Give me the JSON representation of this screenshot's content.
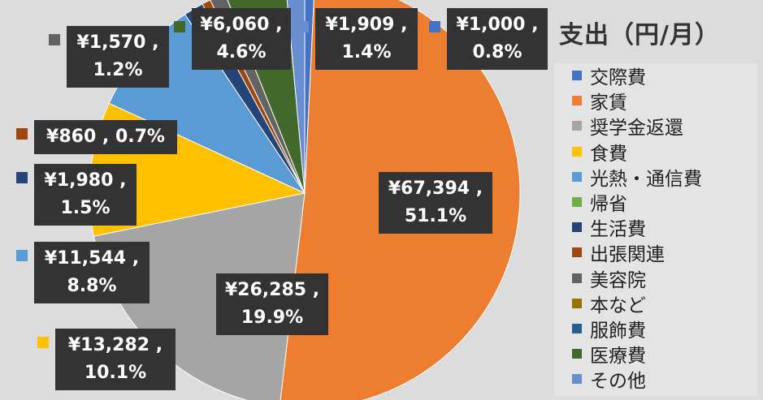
{
  "chart_data": {
    "type": "pie",
    "title": "支出（円/月）",
    "legend_position": "right",
    "slices": [
      {
        "name": "交際費",
        "value": 1000,
        "percent": 0.8,
        "color": "#4472c4",
        "label": [
          "¥1,000 ,",
          "0.8%"
        ]
      },
      {
        "name": "家賃",
        "value": 67394,
        "percent": 51.1,
        "color": "#ed7d31",
        "label": [
          "¥67,394 ,",
          "51.1%"
        ]
      },
      {
        "name": "奨学金返還",
        "value": 26285,
        "percent": 19.9,
        "color": "#a5a5a5",
        "label": [
          "¥26,285 ,",
          "19.9%"
        ]
      },
      {
        "name": "食費",
        "value": 13282,
        "percent": 10.1,
        "color": "#ffc000",
        "label": [
          "¥13,282 ,",
          "10.1%"
        ]
      },
      {
        "name": "光熱・通信費",
        "value": 11544,
        "percent": 8.8,
        "color": "#5b9bd5",
        "label": [
          "¥11,544 ,",
          "8.8%"
        ]
      },
      {
        "name": "帰省",
        "value": 0,
        "percent": 0,
        "color": "#70ad47",
        "label": null
      },
      {
        "name": "生活費",
        "value": 1980,
        "percent": 1.5,
        "color": "#264478",
        "label": [
          "¥1,980 ,",
          "1.5%"
        ]
      },
      {
        "name": "出張関連",
        "value": 860,
        "percent": 0.7,
        "color": "#9e480e",
        "label": [
          "¥860 , 0.7%"
        ]
      },
      {
        "name": "美容院",
        "value": 1570,
        "percent": 1.2,
        "color": "#636363",
        "label": [
          "¥1,570 ,",
          "1.2%"
        ]
      },
      {
        "name": "本など",
        "value": 0,
        "percent": 0,
        "color": "#997300",
        "label": null
      },
      {
        "name": "服飾費",
        "value": 0,
        "percent": 0,
        "color": "#255e91",
        "label": null
      },
      {
        "name": "医療費",
        "value": 6060,
        "percent": 4.6,
        "color": "#43682b",
        "label": [
          "¥6,060 ,",
          "4.6%"
        ]
      },
      {
        "name": "その他",
        "value": 1909,
        "percent": 1.4,
        "color": "#698ed0",
        "label": [
          "¥1,909 ,",
          "1.4%"
        ]
      }
    ]
  }
}
